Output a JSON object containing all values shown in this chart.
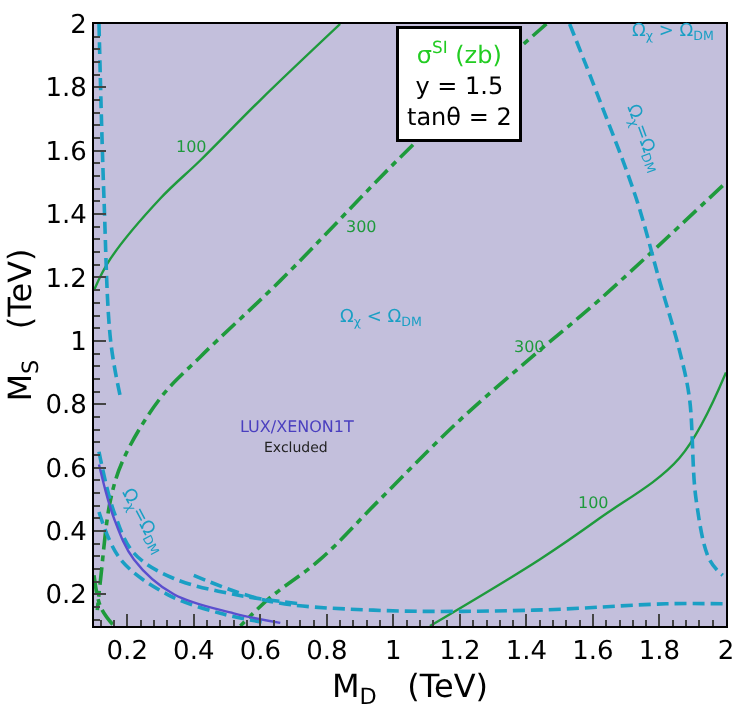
{
  "chart_data": {
    "type": "line",
    "xlabel": "M$_{D}$   (TeV)",
    "ylabel": "M$_{S}$   (TeV)",
    "xlim": [
      0.1,
      2
    ],
    "ylim": [
      0.1,
      2
    ],
    "xticks": [
      0.2,
      0.4,
      0.6,
      0.8,
      1,
      1.2,
      1.4,
      1.6,
      1.8,
      2
    ],
    "yticks": [
      0.2,
      0.4,
      0.6,
      0.8,
      1,
      1.2,
      1.4,
      1.6,
      1.8,
      2
    ],
    "grid": false,
    "series": [
      {
        "color": "#1e9a3c",
        "line_style": "solid",
        "x": [
          0.1,
          0.15,
          0.3,
          0.42,
          0.6,
          0.84
        ],
        "values": [
          1.16,
          1.26,
          1.45,
          1.57,
          1.76,
          2.0
        ]
      },
      {
        "color": "#1e9a3c",
        "line_style": "solid",
        "x": [
          1.11,
          1.44,
          1.62,
          1.86,
          2.0
        ],
        "values": [
          0.1,
          0.31,
          0.44,
          0.63,
          0.9
        ]
      },
      {
        "color": "#1e9a3c",
        "line_style": "dashdot",
        "x": [
          1.46,
          1.07,
          0.66,
          0.42,
          0.3,
          0.19,
          0.15,
          0.12,
          0.11
        ],
        "values": [
          2.0,
          1.63,
          1.19,
          0.95,
          0.82,
          0.63,
          0.5,
          0.25,
          0.15
        ]
      },
      {
        "color": "#1e9a3c",
        "line_style": "dashdot",
        "x": [
          1.99,
          1.62,
          1.44,
          1.2,
          0.96,
          0.78,
          0.63,
          0.54
        ],
        "values": [
          1.49,
          1.13,
          0.97,
          0.75,
          0.5,
          0.31,
          0.19,
          0.1
        ]
      },
      {
        "color": "#1e9a3c",
        "line_style": "dashdot",
        "x": [
          0.1,
          0.12,
          0.16
        ],
        "values": [
          0.26,
          0.16,
          0.1
        ]
      },
      {
        "color": "#1a9fc4",
        "line_style": "dashed",
        "x": [
          1.53,
          1.62,
          1.73,
          1.8,
          1.86,
          1.89,
          1.91,
          1.95,
          1.99
        ],
        "values": [
          2.0,
          1.76,
          1.45,
          1.19,
          0.97,
          0.82,
          0.5,
          0.31,
          0.26
        ]
      },
      {
        "color": "#1a9fc4",
        "line_style": "dashed",
        "x": [
          0.115,
          0.13,
          0.15,
          0.18
        ],
        "values": [
          2.0,
          1.45,
          1.0,
          0.82
        ]
      },
      {
        "color": "#1a9fc4",
        "line_style": "dashed",
        "x": [
          0.4,
          0.62,
          0.94,
          1.42,
          1.82,
          2.0
        ],
        "values": [
          0.26,
          0.18,
          0.15,
          0.15,
          0.17,
          0.17
        ]
      },
      {
        "color": "#1a9fc4",
        "line_style": "dashed",
        "x": [
          0.115,
          0.16,
          0.22,
          0.34,
          0.52,
          0.72
        ],
        "values": [
          0.65,
          0.46,
          0.33,
          0.25,
          0.2,
          0.17
        ]
      },
      {
        "color": "#1a9fc4",
        "line_style": "dashed",
        "x": [
          0.115,
          0.18,
          0.32,
          0.48,
          0.62
        ],
        "values": [
          0.46,
          0.31,
          0.2,
          0.14,
          0.11
        ]
      },
      {
        "color": "#5a4fcf",
        "line_style": "solid",
        "x": [
          0.115,
          0.16,
          0.22,
          0.34,
          0.52,
          0.66
        ],
        "values": [
          0.61,
          0.44,
          0.31,
          0.2,
          0.14,
          0.11
        ]
      }
    ],
    "annotations": [
      "σ$^{SI}$ (zb)",
      "y = 1.5",
      "tanθ = 2",
      "100",
      "100",
      "300",
      "300",
      "Ω$_{χ}$ < Ω$_{DM}$",
      "Ω$_{χ}$ > Ω$_{DM}$",
      "Ω$_{χ}$=Ω$_{DM}$",
      "Ω$_{χ}$=Ω$_{DM}$",
      "LUX/XENON1T",
      "Excluded"
    ]
  }
}
